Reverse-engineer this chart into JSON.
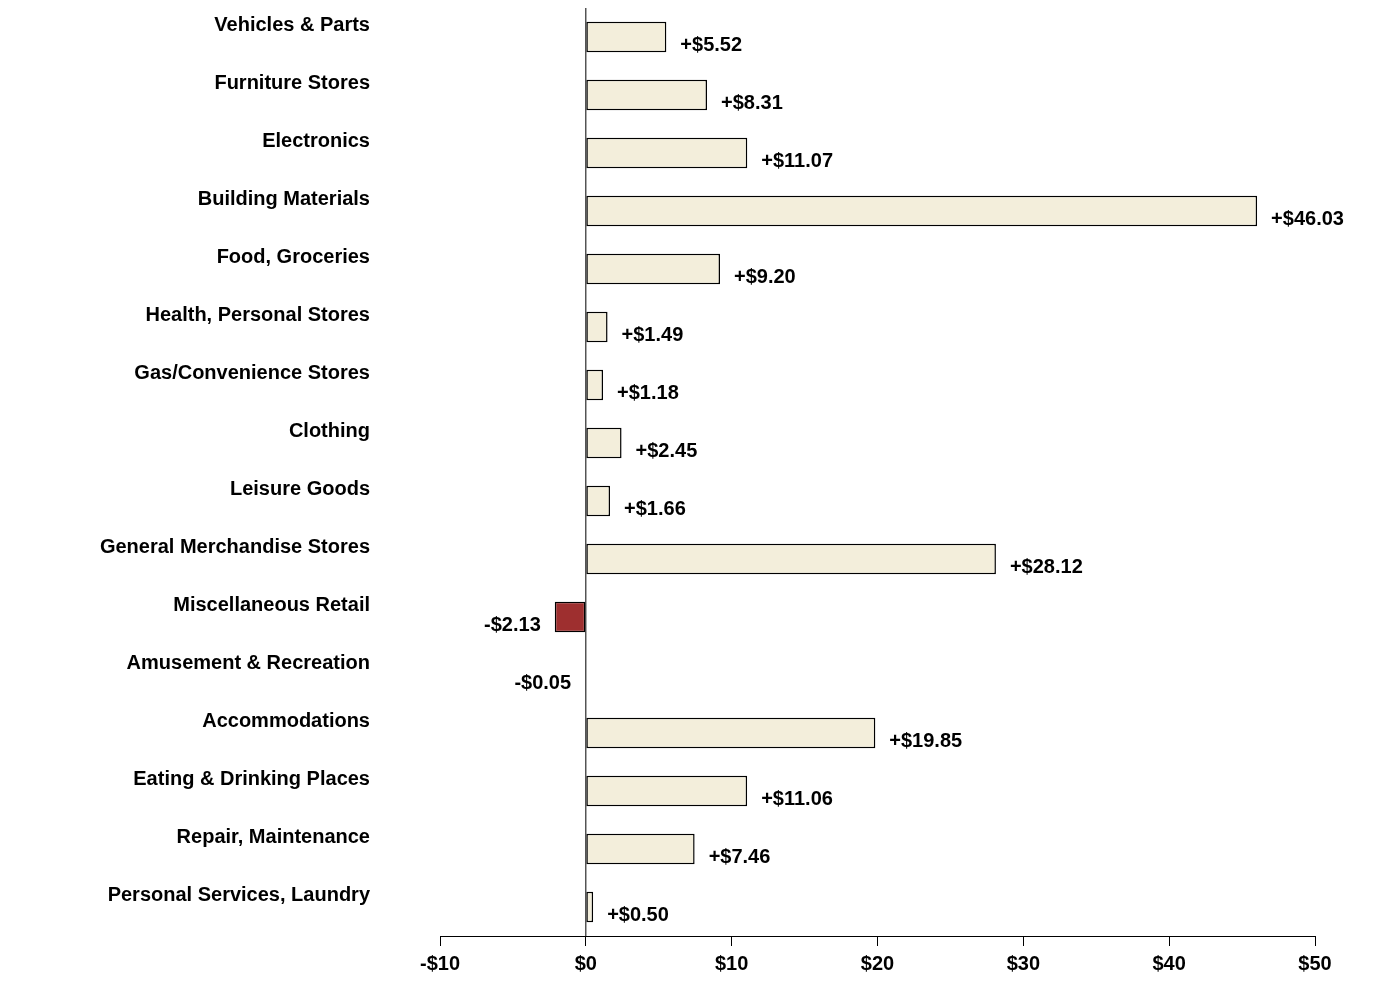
{
  "chart_data": {
    "type": "bar",
    "orientation": "horizontal",
    "categories": [
      "Vehicles & Parts",
      "Furniture Stores",
      "Electronics",
      "Building Materials",
      "Food, Groceries",
      "Health, Personal Stores",
      "Gas/Convenience Stores",
      "Clothing",
      "Leisure Goods",
      "General Merchandise Stores",
      "Miscellaneous Retail",
      "Amusement & Recreation",
      "Accommodations",
      "Eating & Drinking Places",
      "Repair, Maintenance",
      "Personal Services, Laundry"
    ],
    "values": [
      5.52,
      8.31,
      11.07,
      46.03,
      9.2,
      1.49,
      1.18,
      2.45,
      1.66,
      28.12,
      -2.13,
      -0.05,
      19.85,
      11.06,
      7.46,
      0.5
    ],
    "value_labels": [
      "+$5.52",
      "+$8.31",
      "+$11.07",
      "+$46.03",
      "+$9.20",
      "+$1.49",
      "+$1.18",
      "+$2.45",
      "+$1.66",
      "+$28.12",
      "-$2.13",
      "-$0.05",
      "+$19.85",
      "+$11.06",
      "+$7.46",
      "+$0.50"
    ],
    "colors": [
      "#f3eedb",
      "#f3eedb",
      "#f3eedb",
      "#f3eedb",
      "#f3eedb",
      "#f3eedb",
      "#f3eedb",
      "#f3eedb",
      "#f3eedb",
      "#f3eedb",
      "#9e2f2f",
      "#000000",
      "#f3eedb",
      "#f3eedb",
      "#f3eedb",
      "#f3eedb"
    ],
    "xlim": [
      -10,
      50
    ],
    "xticks": [
      {
        "value": -10,
        "label": "-$10"
      },
      {
        "value": 0,
        "label": "$0"
      },
      {
        "value": 10,
        "label": "$10"
      },
      {
        "value": 20,
        "label": "$20"
      },
      {
        "value": 30,
        "label": "$30"
      },
      {
        "value": 40,
        "label": "$40"
      },
      {
        "value": 50,
        "label": "$50"
      }
    ],
    "ref_lines": [
      {
        "axis": "x",
        "value": 0,
        "color": "#000000"
      }
    ],
    "grid": false,
    "legend": false
  }
}
